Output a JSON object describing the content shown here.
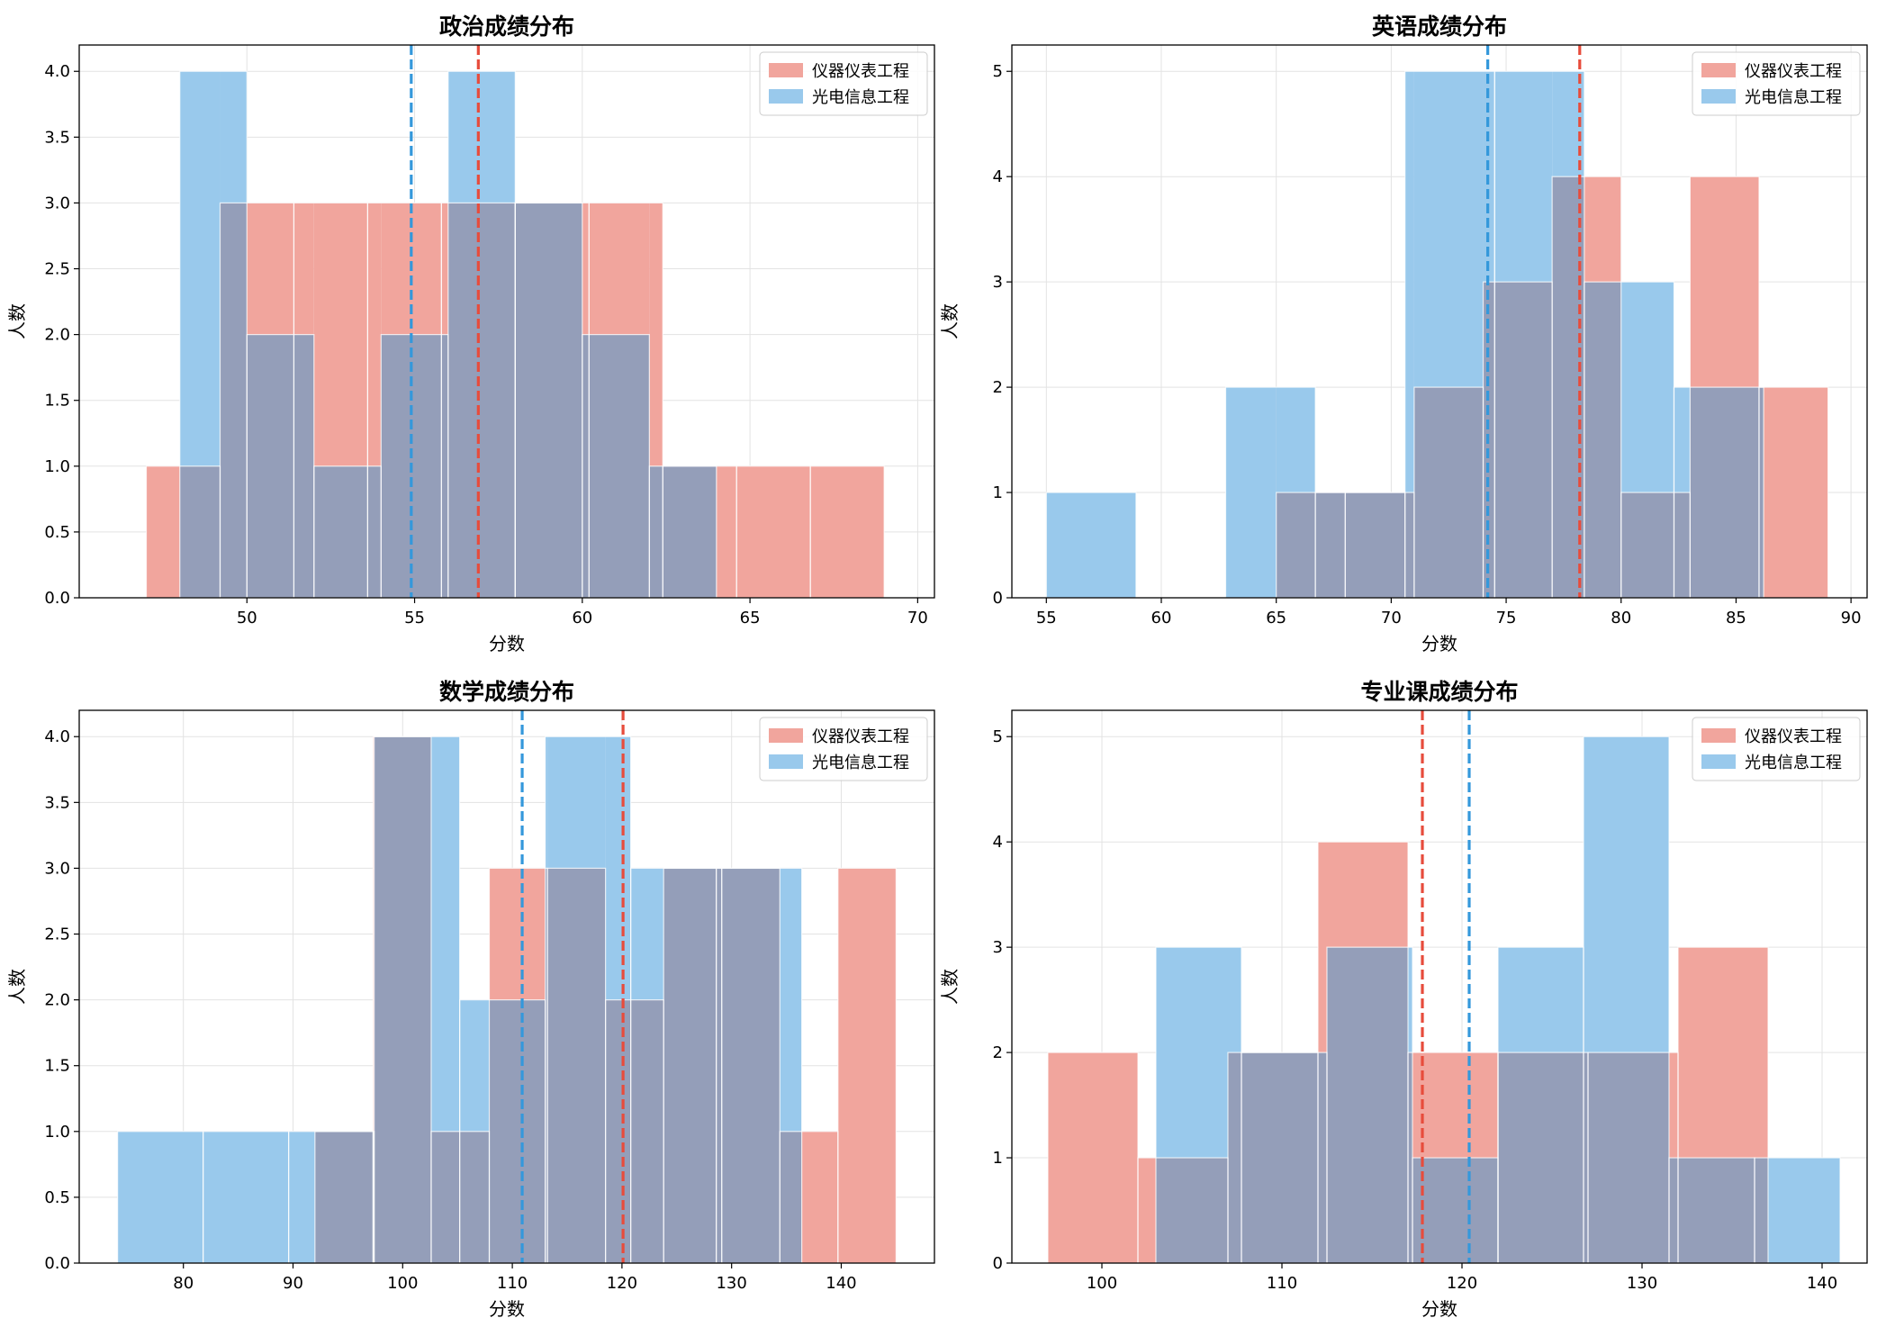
{
  "colors": {
    "series_a": "#e74c3c",
    "series_b": "#3498db",
    "series_a_fill": "#f1a59d",
    "series_b_fill": "#99c9ec",
    "overlap_fill": "#949eb9"
  },
  "chart_data": [
    {
      "type": "histogram",
      "title": "政治成绩分布",
      "xlabel": "分数",
      "ylabel": "人数",
      "xlim": [
        45,
        70.5
      ],
      "ylim": [
        0,
        4.2
      ],
      "xticks": [
        50,
        55,
        60,
        65,
        70
      ],
      "yticks": [
        0.0,
        0.5,
        1.0,
        1.5,
        2.0,
        2.5,
        3.0,
        3.5,
        4.0
      ],
      "tick_format": "%.1f",
      "legend": "top-right",
      "grid": true,
      "series": [
        {
          "name": "仪器仪表工程",
          "color_key": "series_a",
          "mean": 56.9,
          "bins": [
            [
              47,
              49.2,
              1
            ],
            [
              49.2,
              51.4,
              3
            ],
            [
              51.4,
              53.6,
              3
            ],
            [
              53.6,
              55.8,
              3
            ],
            [
              55.8,
              58.0,
              3
            ],
            [
              58.0,
              60.2,
              3
            ],
            [
              60.2,
              62.4,
              3
            ],
            [
              62.4,
              64.6,
              1
            ],
            [
              64.6,
              66.8,
              1
            ],
            [
              66.8,
              69.0,
              1
            ]
          ]
        },
        {
          "name": "光电信息工程",
          "color_key": "series_b",
          "mean": 54.9,
          "bins": [
            [
              48,
              50,
              4
            ],
            [
              50,
              52,
              2
            ],
            [
              52,
              54,
              1
            ],
            [
              54,
              56,
              2
            ],
            [
              56,
              58,
              4
            ],
            [
              58,
              60,
              3
            ],
            [
              60,
              62,
              2
            ],
            [
              62,
              64,
              1
            ]
          ]
        }
      ]
    },
    {
      "type": "histogram",
      "title": "英语成绩分布",
      "xlabel": "分数",
      "ylabel": "人数",
      "xlim": [
        53.5,
        90.7
      ],
      "ylim": [
        0,
        5.25
      ],
      "xticks": [
        55,
        60,
        65,
        70,
        75,
        80,
        85,
        90
      ],
      "yticks": [
        0,
        1,
        2,
        3,
        4,
        5
      ],
      "tick_format": "%d",
      "legend": "top-right",
      "grid": true,
      "series": [
        {
          "name": "仪器仪表工程",
          "color_key": "series_a",
          "mean": 78.2,
          "bins": [
            [
              65,
              68,
              1
            ],
            [
              68,
              71,
              1
            ],
            [
              71,
              74,
              2
            ],
            [
              74,
              77,
              3
            ],
            [
              77,
              80,
              4
            ],
            [
              80,
              83,
              1
            ],
            [
              83,
              86,
              4
            ],
            [
              86,
              89,
              2
            ]
          ]
        },
        {
          "name": "光电信息工程",
          "color_key": "series_b",
          "mean": 74.2,
          "bins": [
            [
              55,
              58.9,
              1
            ],
            [
              58.9,
              62.8,
              0
            ],
            [
              62.8,
              66.7,
              2
            ],
            [
              66.7,
              70.6,
              1
            ],
            [
              70.6,
              74.5,
              5
            ],
            [
              74.5,
              78.4,
              5
            ],
            [
              78.4,
              82.3,
              3
            ],
            [
              82.3,
              86.2,
              2
            ]
          ]
        }
      ]
    },
    {
      "type": "histogram",
      "title": "数学成绩分布",
      "xlabel": "分数",
      "ylabel": "人数",
      "xlim": [
        70.5,
        148.5
      ],
      "ylim": [
        0,
        4.2
      ],
      "xticks": [
        80,
        90,
        100,
        110,
        120,
        130,
        140
      ],
      "yticks": [
        0.0,
        0.5,
        1.0,
        1.5,
        2.0,
        2.5,
        3.0,
        3.5,
        4.0
      ],
      "tick_format": "%.1f",
      "legend": "top-right",
      "grid": true,
      "series": [
        {
          "name": "仪器仪表工程",
          "color_key": "series_a",
          "mean": 120.1,
          "bins": [
            [
              92,
              97.3,
              1
            ],
            [
              97.3,
              102.6,
              4
            ],
            [
              102.6,
              107.9,
              1
            ],
            [
              107.9,
              113.2,
              3
            ],
            [
              113.2,
              118.5,
              3
            ],
            [
              118.5,
              123.8,
              2
            ],
            [
              123.8,
              129.1,
              3
            ],
            [
              129.1,
              134.4,
              3
            ],
            [
              134.4,
              139.7,
              1
            ],
            [
              139.7,
              145.0,
              3
            ]
          ]
        },
        {
          "name": "光电信息工程",
          "color_key": "series_b",
          "mean": 110.9,
          "bins": [
            [
              74,
              81.8,
              1
            ],
            [
              81.8,
              89.6,
              1
            ],
            [
              89.6,
              97.4,
              1
            ],
            [
              97.4,
              105.2,
              4
            ],
            [
              105.2,
              113.0,
              2
            ],
            [
              113.0,
              120.8,
              4
            ],
            [
              120.8,
              128.6,
              3
            ],
            [
              128.6,
              136.4,
              3
            ]
          ]
        }
      ]
    },
    {
      "type": "histogram",
      "title": "专业课成绩分布",
      "xlabel": "分数",
      "ylabel": "人数",
      "xlim": [
        95,
        142.5
      ],
      "ylim": [
        0,
        5.25
      ],
      "xticks": [
        100,
        110,
        120,
        130,
        140
      ],
      "yticks": [
        0,
        1,
        2,
        3,
        4,
        5
      ],
      "tick_format": "%d",
      "legend": "top-right",
      "grid": true,
      "series": [
        {
          "name": "仪器仪表工程",
          "color_key": "series_a",
          "mean": 117.8,
          "bins": [
            [
              97,
              102,
              2
            ],
            [
              102,
              107,
              1
            ],
            [
              107,
              112,
              2
            ],
            [
              112,
              117,
              4
            ],
            [
              117,
              122,
              2
            ],
            [
              122,
              127,
              2
            ],
            [
              127,
              132,
              2
            ],
            [
              132,
              137,
              3
            ]
          ]
        },
        {
          "name": "光电信息工程",
          "color_key": "series_b",
          "mean": 120.4,
          "bins": [
            [
              103,
              107.75,
              3
            ],
            [
              107.75,
              112.5,
              2
            ],
            [
              112.5,
              117.25,
              3
            ],
            [
              117.25,
              122,
              1
            ],
            [
              122,
              126.75,
              3
            ],
            [
              126.75,
              131.5,
              5
            ],
            [
              131.5,
              136.25,
              1
            ],
            [
              136.25,
              141,
              1
            ]
          ]
        }
      ]
    }
  ]
}
